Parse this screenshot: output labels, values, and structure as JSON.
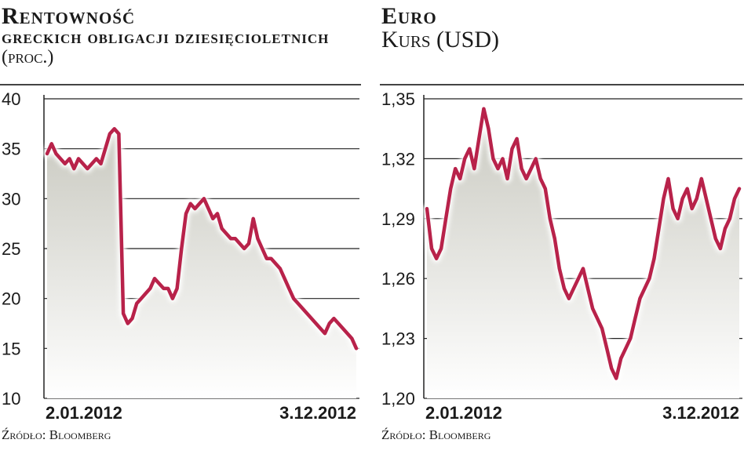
{
  "chart_data": [
    {
      "type": "line",
      "title": "Rentowność",
      "subtitle_bold": "greckich obligacji dziesięcioletnich",
      "subtitle_unit": "(proc.)",
      "x_start_label": "2.01.2012",
      "x_end_label": "3.12.2012",
      "ylim": [
        10,
        40
      ],
      "yticks": [
        "40",
        "35",
        "30",
        "25",
        "20",
        "15",
        "10"
      ],
      "ytick_values": [
        40,
        35,
        30,
        25,
        20,
        15,
        10
      ],
      "grid": true,
      "source": "Źródło: Bloomberg",
      "series": [
        {
          "values": [
            34.5,
            35.5,
            34.5,
            34.0,
            33.5,
            34.0,
            33.0,
            34.0,
            33.5,
            33.0,
            33.5,
            34.0,
            33.5,
            35.0,
            36.5,
            37.0,
            36.5,
            18.5,
            17.5,
            18.0,
            19.5,
            20.0,
            20.5,
            21.0,
            22.0,
            21.5,
            21.0,
            21.0,
            20.0,
            21.0,
            25.0,
            28.5,
            29.5,
            29.0,
            29.5,
            30.0,
            29.0,
            28.0,
            28.5,
            27.0,
            26.5,
            26.0,
            26.0,
            25.5,
            25.0,
            25.5,
            28.0,
            26.0,
            25.0,
            24.0,
            24.0,
            23.5,
            23.0,
            22.0,
            21.0,
            20.0,
            19.5,
            19.0,
            18.5,
            18.0,
            17.5,
            17.0,
            16.5,
            17.5,
            18.0,
            17.5,
            17.0,
            16.5,
            16.0,
            15.0
          ]
        }
      ]
    },
    {
      "type": "line",
      "title": "Euro",
      "subtitle_normal": "Kurs (USD)",
      "x_start_label": "2.01.2012",
      "x_end_label": "3.12.2012",
      "ylim": [
        1.2,
        1.35
      ],
      "yticks": [
        "1,35",
        "1,32",
        "1,29",
        "1,26",
        "1,23",
        "1,20"
      ],
      "ytick_values": [
        1.35,
        1.32,
        1.29,
        1.26,
        1.23,
        1.2
      ],
      "grid": true,
      "source": "Źródło: Bloomberg",
      "series": [
        {
          "values": [
            1.295,
            1.275,
            1.27,
            1.275,
            1.29,
            1.305,
            1.315,
            1.31,
            1.32,
            1.325,
            1.315,
            1.33,
            1.345,
            1.335,
            1.32,
            1.315,
            1.32,
            1.31,
            1.325,
            1.33,
            1.315,
            1.31,
            1.315,
            1.32,
            1.31,
            1.305,
            1.29,
            1.28,
            1.265,
            1.255,
            1.25,
            1.255,
            1.26,
            1.265,
            1.255,
            1.245,
            1.24,
            1.235,
            1.225,
            1.215,
            1.21,
            1.22,
            1.225,
            1.23,
            1.24,
            1.25,
            1.255,
            1.26,
            1.27,
            1.285,
            1.3,
            1.31,
            1.295,
            1.29,
            1.3,
            1.305,
            1.295,
            1.3,
            1.31,
            1.3,
            1.29,
            1.28,
            1.275,
            1.285,
            1.29,
            1.3,
            1.305
          ]
        }
      ]
    }
  ],
  "colors": {
    "line": "#b8224a",
    "grid": "#222222",
    "fill_top": "#c9c9c0",
    "fill_bottom": "#ffffff"
  }
}
